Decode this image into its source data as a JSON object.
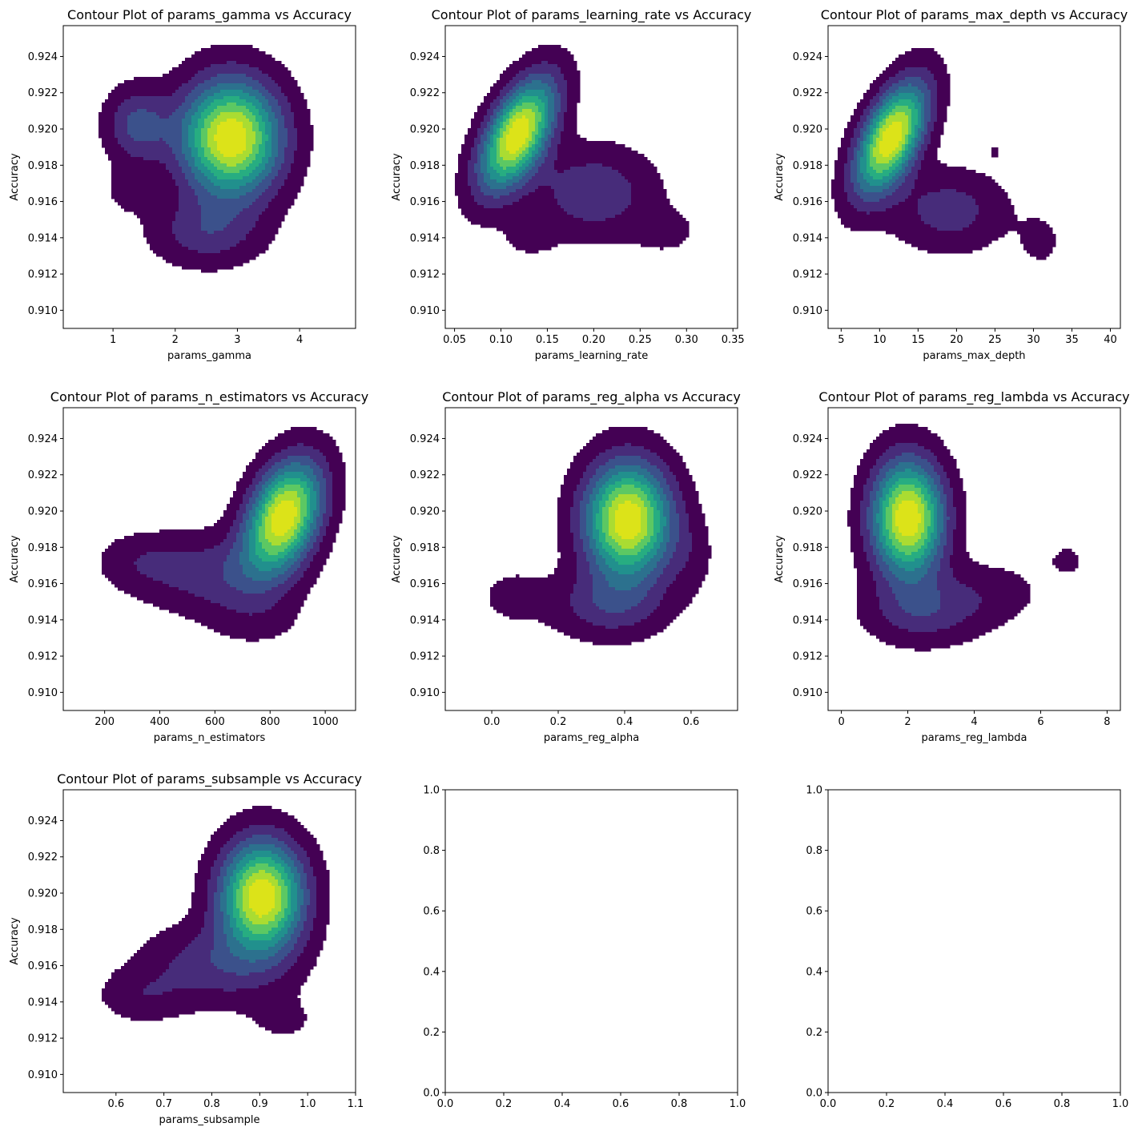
{
  "figure": {
    "background": "#ffffff"
  },
  "chart_data": [
    {
      "type": "contour",
      "title": "Contour Plot of params_gamma vs Accuracy",
      "xlabel": "params_gamma",
      "ylabel": "Accuracy",
      "xlim": [
        0.2,
        4.9
      ],
      "ylim": [
        0.909,
        0.9257
      ],
      "xticks": [
        "1",
        "2",
        "3",
        "4"
      ],
      "xtick_values": [
        1,
        2,
        3,
        4
      ],
      "yticks": [
        "0.910",
        "0.912",
        "0.914",
        "0.916",
        "0.918",
        "0.920",
        "0.922",
        "0.924"
      ],
      "ytick_values": [
        0.91,
        0.912,
        0.914,
        0.916,
        0.918,
        0.92,
        0.922,
        0.924
      ],
      "density_peaks": [
        {
          "x": 2.9,
          "y": 0.9195,
          "sx": 0.55,
          "sy": 0.0022,
          "w": 1.0
        },
        {
          "x": 1.4,
          "y": 0.9202,
          "sx": 0.35,
          "sy": 0.0014,
          "w": 0.3
        },
        {
          "x": 2.5,
          "y": 0.9143,
          "sx": 0.6,
          "sy": 0.0013,
          "w": 0.22
        },
        {
          "x": 1.2,
          "y": 0.9165,
          "sx": 0.3,
          "sy": 0.001,
          "w": 0.07
        }
      ],
      "colormap": "viridis",
      "levels": 9
    },
    {
      "type": "contour",
      "title": "Contour Plot of params_learning_rate vs Accuracy",
      "xlabel": "params_learning_rate",
      "ylabel": "Accuracy",
      "xlim": [
        0.04,
        0.355
      ],
      "ylim": [
        0.909,
        0.9257
      ],
      "xticks": [
        "0.05",
        "0.10",
        "0.15",
        "0.20",
        "0.25",
        "0.30",
        "0.35"
      ],
      "xtick_values": [
        0.05,
        0.1,
        0.15,
        0.2,
        0.25,
        0.3,
        0.35
      ],
      "yticks": [
        "0.910",
        "0.912",
        "0.914",
        "0.916",
        "0.918",
        "0.920",
        "0.922",
        "0.924"
      ],
      "ytick_values": [
        0.91,
        0.912,
        0.914,
        0.916,
        0.918,
        0.92,
        0.922,
        0.924
      ],
      "density_peaks": [
        {
          "x": 0.118,
          "y": 0.9197,
          "sx": 0.028,
          "sy": 0.0021,
          "w": 1.0,
          "rho": 0.55
        },
        {
          "x": 0.2,
          "y": 0.9165,
          "sx": 0.045,
          "sy": 0.0017,
          "w": 0.25
        },
        {
          "x": 0.13,
          "y": 0.914,
          "sx": 0.02,
          "sy": 0.0008,
          "w": 0.08
        },
        {
          "x": 0.28,
          "y": 0.9143,
          "sx": 0.025,
          "sy": 0.0009,
          "w": 0.08
        }
      ],
      "colormap": "viridis",
      "levels": 9
    },
    {
      "type": "contour",
      "title": "Contour Plot of params_max_depth vs Accuracy",
      "xlabel": "params_max_depth",
      "ylabel": "Accuracy",
      "xlim": [
        3.3,
        41.3
      ],
      "ylim": [
        0.909,
        0.9257
      ],
      "xticks": [
        "5",
        "10",
        "15",
        "20",
        "25",
        "30",
        "35",
        "40"
      ],
      "xtick_values": [
        5,
        10,
        15,
        20,
        25,
        30,
        35,
        40
      ],
      "yticks": [
        "0.910",
        "0.912",
        "0.914",
        "0.916",
        "0.918",
        "0.920",
        "0.922",
        "0.924"
      ],
      "ytick_values": [
        0.91,
        0.912,
        0.914,
        0.916,
        0.918,
        0.92,
        0.922,
        0.924
      ],
      "density_peaks": [
        {
          "x": 11.5,
          "y": 0.9195,
          "sx": 3.2,
          "sy": 0.0021,
          "w": 1.0,
          "rho": 0.55
        },
        {
          "x": 19,
          "y": 0.9155,
          "sx": 5,
          "sy": 0.0015,
          "w": 0.22
        },
        {
          "x": 25,
          "y": 0.9188,
          "sx": 1.0,
          "sy": 0.0005,
          "w": 0.06
        },
        {
          "x": 31,
          "y": 0.9138,
          "sx": 2.2,
          "sy": 0.0012,
          "w": 0.08
        }
      ],
      "colormap": "viridis",
      "levels": 9
    },
    {
      "type": "contour",
      "title": "Contour Plot of params_n_estimators vs Accuracy",
      "xlabel": "params_n_estimators",
      "ylabel": "Accuracy",
      "xlim": [
        50,
        1110
      ],
      "ylim": [
        0.909,
        0.9257
      ],
      "xticks": [
        "200",
        "400",
        "600",
        "800",
        "1000"
      ],
      "xtick_values": [
        200,
        400,
        600,
        800,
        1000
      ],
      "yticks": [
        "0.910",
        "0.912",
        "0.914",
        "0.916",
        "0.918",
        "0.920",
        "0.922",
        "0.924"
      ],
      "ytick_values": [
        0.91,
        0.912,
        0.914,
        0.916,
        0.918,
        0.92,
        0.922,
        0.924
      ],
      "density_peaks": [
        {
          "x": 850,
          "y": 0.9197,
          "sx": 95,
          "sy": 0.0021,
          "w": 1.0,
          "rho": 0.35
        },
        {
          "x": 600,
          "y": 0.9165,
          "sx": 170,
          "sy": 0.0015,
          "w": 0.22
        },
        {
          "x": 330,
          "y": 0.9172,
          "sx": 110,
          "sy": 0.0011,
          "w": 0.12
        },
        {
          "x": 750,
          "y": 0.914,
          "sx": 120,
          "sy": 0.0011,
          "w": 0.08
        }
      ],
      "colormap": "viridis",
      "levels": 9
    },
    {
      "type": "contour",
      "title": "Contour Plot of params_reg_alpha vs Accuracy",
      "xlabel": "params_reg_alpha",
      "ylabel": "Accuracy",
      "xlim": [
        -0.14,
        0.74
      ],
      "ylim": [
        0.909,
        0.9257
      ],
      "xticks": [
        "0.0",
        "0.2",
        "0.4",
        "0.6"
      ],
      "xtick_values": [
        0.0,
        0.2,
        0.4,
        0.6
      ],
      "yticks": [
        "0.910",
        "0.912",
        "0.914",
        "0.916",
        "0.918",
        "0.920",
        "0.922",
        "0.924"
      ],
      "ytick_values": [
        0.91,
        0.912,
        0.914,
        0.916,
        0.918,
        0.92,
        0.922,
        0.924
      ],
      "density_peaks": [
        {
          "x": 0.41,
          "y": 0.9195,
          "sx": 0.09,
          "sy": 0.0022,
          "w": 1.0
        },
        {
          "x": 0.35,
          "y": 0.9148,
          "sx": 0.12,
          "sy": 0.0013,
          "w": 0.22
        },
        {
          "x": 0.06,
          "y": 0.9153,
          "sx": 0.07,
          "sy": 0.0011,
          "w": 0.09
        },
        {
          "x": 0.6,
          "y": 0.9175,
          "sx": 0.05,
          "sy": 0.0015,
          "w": 0.08
        }
      ],
      "colormap": "viridis",
      "levels": 9
    },
    {
      "type": "contour",
      "title": "Contour Plot of params_reg_lambda vs Accuracy",
      "xlabel": "params_reg_lambda",
      "ylabel": "Accuracy",
      "xlim": [
        -0.4,
        8.4
      ],
      "ylim": [
        0.909,
        0.9257
      ],
      "xticks": [
        "0",
        "2",
        "4",
        "6",
        "8"
      ],
      "xtick_values": [
        0,
        2,
        4,
        6,
        8
      ],
      "yticks": [
        "0.910",
        "0.912",
        "0.914",
        "0.916",
        "0.918",
        "0.920",
        "0.922",
        "0.924"
      ],
      "ytick_values": [
        0.91,
        0.912,
        0.914,
        0.916,
        0.918,
        0.92,
        0.922,
        0.924
      ],
      "density_peaks": [
        {
          "x": 2.0,
          "y": 0.9196,
          "sx": 0.75,
          "sy": 0.0022,
          "w": 1.0
        },
        {
          "x": 2.5,
          "y": 0.9145,
          "sx": 1.2,
          "sy": 0.0013,
          "w": 0.22
        },
        {
          "x": 4.5,
          "y": 0.9155,
          "sx": 1.1,
          "sy": 0.0012,
          "w": 0.1
        },
        {
          "x": 6.8,
          "y": 0.9173,
          "sx": 0.45,
          "sy": 0.0007,
          "w": 0.08
        }
      ],
      "colormap": "viridis",
      "levels": 9
    },
    {
      "type": "contour",
      "title": "Contour Plot of params_subsample vs Accuracy",
      "xlabel": "params_subsample",
      "ylabel": "Accuracy",
      "xlim": [
        0.49,
        1.1
      ],
      "ylim": [
        0.909,
        0.9257
      ],
      "xticks": [
        "0.6",
        "0.7",
        "0.8",
        "0.9",
        "1.0",
        "1.1"
      ],
      "xtick_values": [
        0.6,
        0.7,
        0.8,
        0.9,
        1.0,
        1.1
      ],
      "yticks": [
        "0.910",
        "0.912",
        "0.914",
        "0.916",
        "0.918",
        "0.920",
        "0.922",
        "0.924"
      ],
      "ytick_values": [
        0.91,
        0.912,
        0.914,
        0.916,
        0.918,
        0.92,
        0.922,
        0.924
      ],
      "density_peaks": [
        {
          "x": 0.905,
          "y": 0.9198,
          "sx": 0.06,
          "sy": 0.0021,
          "w": 1.0
        },
        {
          "x": 0.8,
          "y": 0.916,
          "sx": 0.1,
          "sy": 0.0015,
          "w": 0.22
        },
        {
          "x": 0.65,
          "y": 0.9143,
          "sx": 0.06,
          "sy": 0.001,
          "w": 0.12
        },
        {
          "x": 0.95,
          "y": 0.913,
          "sx": 0.05,
          "sy": 0.0009,
          "w": 0.08
        }
      ],
      "colormap": "viridis",
      "levels": 9
    },
    {
      "type": "empty",
      "title": "",
      "xlabel": "",
      "ylabel": "",
      "xlim": [
        0,
        1
      ],
      "ylim": [
        0,
        1
      ],
      "xticks": [
        "0.0",
        "0.2",
        "0.4",
        "0.6",
        "0.8",
        "1.0"
      ],
      "xtick_values": [
        0,
        0.2,
        0.4,
        0.6,
        0.8,
        1.0
      ],
      "yticks": [
        "0.0",
        "0.2",
        "0.4",
        "0.6",
        "0.8",
        "1.0"
      ],
      "ytick_values": [
        0,
        0.2,
        0.4,
        0.6,
        0.8,
        1.0
      ]
    },
    {
      "type": "empty",
      "title": "",
      "xlabel": "",
      "ylabel": "",
      "xlim": [
        0,
        1
      ],
      "ylim": [
        0,
        1
      ],
      "xticks": [
        "0.0",
        "0.2",
        "0.4",
        "0.6",
        "0.8",
        "1.0"
      ],
      "xtick_values": [
        0,
        0.2,
        0.4,
        0.6,
        0.8,
        1.0
      ],
      "yticks": [
        "0.0",
        "0.2",
        "0.4",
        "0.6",
        "0.8",
        "1.0"
      ],
      "ytick_values": [
        0,
        0.2,
        0.4,
        0.6,
        0.8,
        1.0
      ]
    }
  ]
}
